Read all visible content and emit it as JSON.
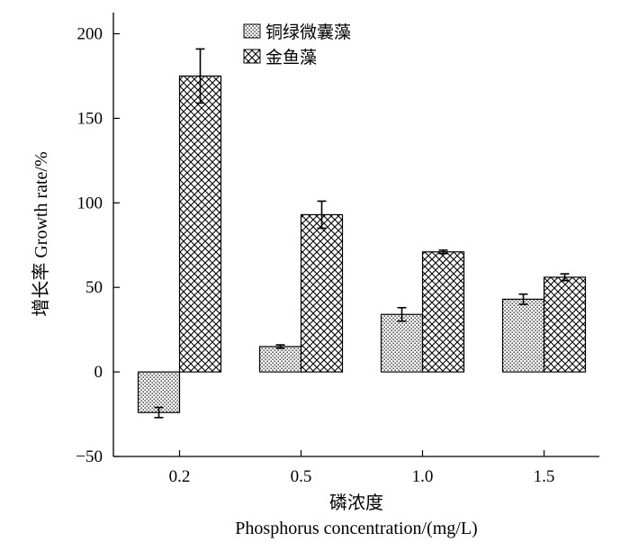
{
  "chart_data": {
    "type": "bar",
    "xlabel_cn": "磷浓度",
    "xlabel_en": "Phosphorus concentration/(mg/L)",
    "ylabel": "增长率 Growth rate/%",
    "categories": [
      "0.2",
      "0.5",
      "1.0",
      "1.5"
    ],
    "ylim": [
      -50,
      215
    ],
    "yticks": [
      -50,
      0,
      50,
      100,
      150,
      200
    ],
    "series": [
      {
        "name": "铜绿微囊藻",
        "pattern": "dots",
        "values": [
          -24,
          15,
          34,
          43
        ],
        "errors": [
          3,
          1,
          4,
          3
        ]
      },
      {
        "name": "金鱼藻",
        "pattern": "crosshatch",
        "values": [
          175,
          93,
          71,
          56
        ],
        "errors": [
          16,
          8,
          1,
          2
        ]
      }
    ],
    "legend_position": "top-center",
    "grid": false,
    "colors": {
      "axis": "#000000",
      "bar_fill": "#ffffff",
      "pattern": "#000000"
    }
  }
}
